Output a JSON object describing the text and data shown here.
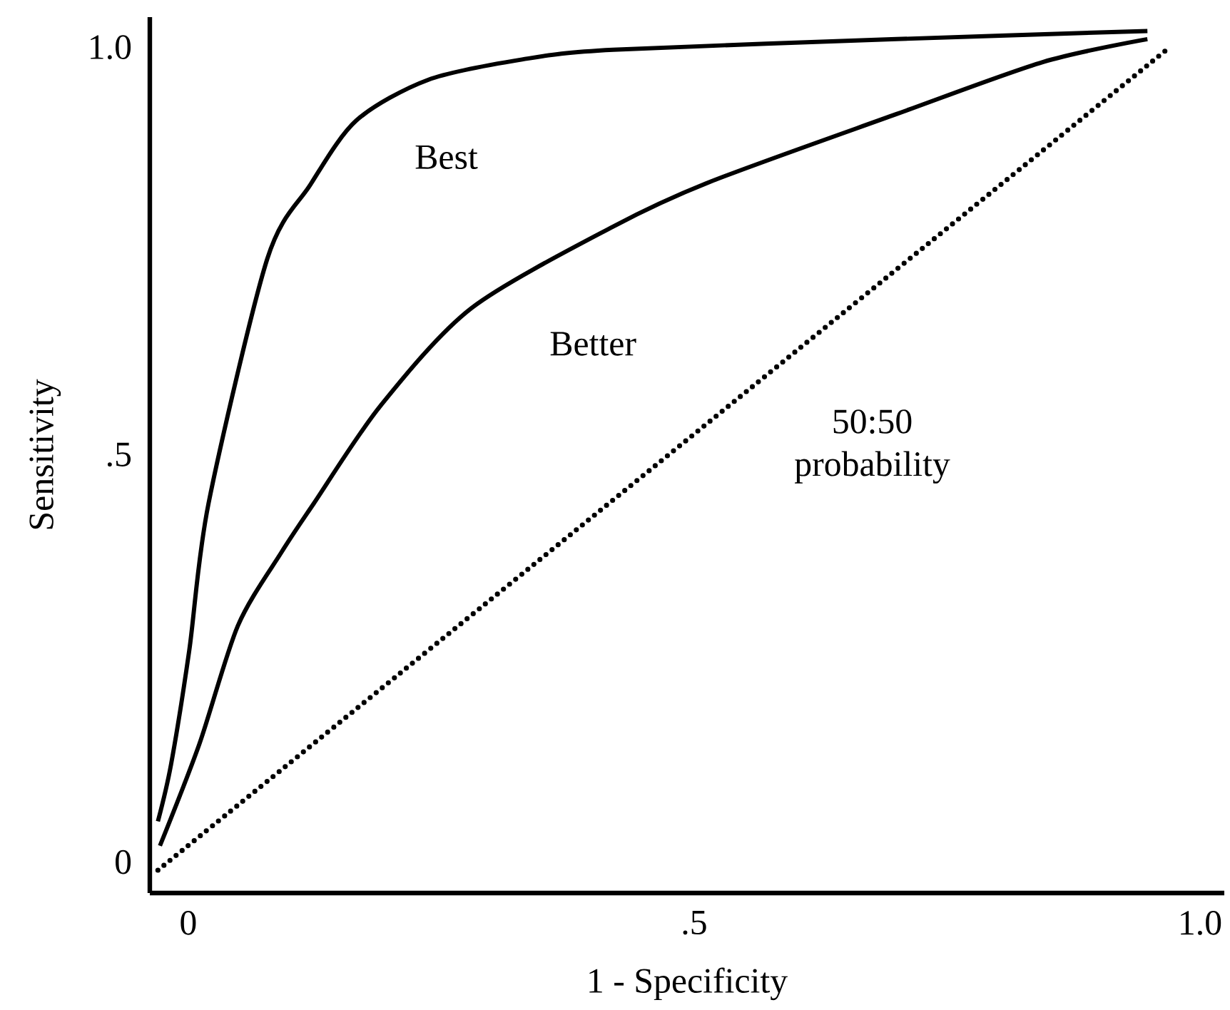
{
  "chart_data": {
    "type": "line",
    "xlabel": "1 - Specificity",
    "ylabel": "Sensitivity",
    "xlim": [
      -0.038,
      1.024
    ],
    "ylim": [
      -0.038,
      1.037
    ],
    "xticks": [
      {
        "value": 0,
        "label": "0"
      },
      {
        "value": 0.5,
        "label": ".5"
      },
      {
        "value": 1,
        "label": "1.0"
      }
    ],
    "yticks": [
      {
        "value": 0,
        "label": "0"
      },
      {
        "value": 0.5,
        "label": ".5"
      },
      {
        "value": 1,
        "label": "1.0"
      }
    ],
    "series": [
      {
        "name": "Best",
        "color": "#000000",
        "line_style": "solid",
        "x": [
          -0.03,
          -0.017,
          0.001,
          0.02,
          0.078,
          0.12,
          0.166,
          0.237,
          0.33,
          0.42,
          0.7,
          0.948
        ],
        "values": [
          0.05,
          0.12,
          0.26,
          0.44,
          0.74,
          0.83,
          0.91,
          0.96,
          0.985,
          0.997,
          1.01,
          1.02
        ]
      },
      {
        "name": "Better",
        "color": "#000000",
        "line_style": "solid",
        "x": [
          -0.028,
          0.011,
          0.049,
          0.092,
          0.124,
          0.19,
          0.28,
          0.42,
          0.516,
          0.7,
          0.845,
          0.948
        ],
        "values": [
          0.02,
          0.145,
          0.29,
          0.38,
          0.44,
          0.56,
          0.68,
          0.78,
          0.835,
          0.918,
          0.982,
          1.01
        ]
      },
      {
        "name": "50:50 probability",
        "color": "#000000",
        "line_style": "dotted",
        "x": [
          -0.03,
          0.97
        ],
        "values": [
          -0.01,
          1.0
        ]
      }
    ]
  }
}
